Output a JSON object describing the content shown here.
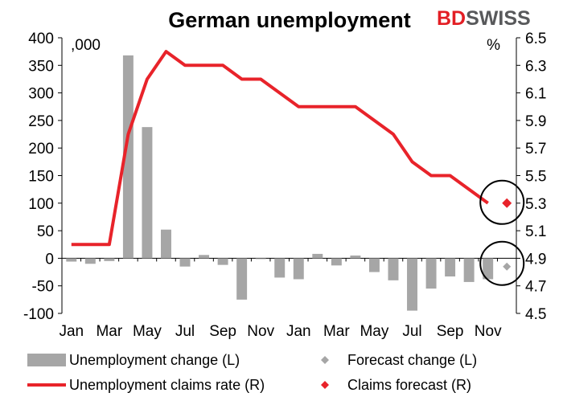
{
  "brand": {
    "part1": "BD",
    "part2": "SWISS",
    "accent_color": "#e31e24",
    "gray_color": "#58595b"
  },
  "chart_data": {
    "type": "bar",
    "title": "German unemployment",
    "left_unit": ",000",
    "right_unit": "%",
    "x_tick_labels": [
      "Jan",
      "Mar",
      "May",
      "Jul",
      "Sep",
      "Nov",
      "Jan",
      "Mar",
      "May",
      "Jul",
      "Sep",
      "Nov"
    ],
    "months": [
      "Jan",
      "Feb",
      "Mar",
      "Apr",
      "May",
      "Jun",
      "Jul",
      "Aug",
      "Sep",
      "Oct",
      "Nov",
      "Dec",
      "Jan",
      "Feb",
      "Mar",
      "Apr",
      "May",
      "Jun",
      "Jul",
      "Aug",
      "Sep",
      "Oct",
      "Nov",
      "Dec"
    ],
    "left_axis": {
      "min": -100,
      "max": 400,
      "step": 50,
      "tick_labels": [
        "400",
        "350",
        "300",
        "250",
        "200",
        "150",
        "100",
        "50",
        "0",
        "-50",
        "-100"
      ]
    },
    "right_axis": {
      "min": 4.5,
      "max": 6.5,
      "ticks": [
        6.5,
        6.3,
        6.1,
        5.9,
        5.7,
        5.5,
        5.3,
        5.1,
        4.9,
        4.7,
        4.5
      ],
      "tick_labels": [
        "6.5",
        "6.3",
        "6.1",
        "5.9",
        "5.7",
        "5.5",
        "5.3",
        "5.1",
        "4.9",
        "4.7",
        "4.5"
      ]
    },
    "series": [
      {
        "name": "Unemployment change (L)",
        "axis": "left",
        "type": "bar",
        "color": "#a6a6a6",
        "values": [
          -6,
          -10,
          -5,
          368,
          238,
          52,
          -15,
          6,
          -12,
          -75,
          0,
          -35,
          -38,
          8,
          -13,
          5,
          -25,
          -40,
          -95,
          -55,
          -33,
          -43,
          -38,
          null
        ]
      },
      {
        "name": "Unemployment claims rate (R)",
        "axis": "right",
        "type": "line",
        "color": "#e8232a",
        "values": [
          5.0,
          5.0,
          5.0,
          5.8,
          6.2,
          6.4,
          6.3,
          6.3,
          6.3,
          6.2,
          6.2,
          6.1,
          6.0,
          6.0,
          6.0,
          6.0,
          5.9,
          5.8,
          5.6,
          5.5,
          5.5,
          5.4,
          5.3,
          null
        ]
      },
      {
        "name": "Forecast change (L)",
        "axis": "left",
        "type": "marker",
        "color": "#a6a6a6",
        "index": 23,
        "value": -15
      },
      {
        "name": "Claims forecast (R)",
        "axis": "right",
        "type": "marker",
        "color": "#e8232a",
        "index": 23,
        "value": 5.3
      }
    ],
    "annotations": [
      "circle around forecast rate",
      "circle around forecast change"
    ],
    "legend": [
      {
        "label": "Unemployment change (L)",
        "symbol": "bar",
        "color": "#a6a6a6"
      },
      {
        "label": "Forecast change (L)",
        "symbol": "diamond",
        "color": "#a6a6a6"
      },
      {
        "label": "Unemployment claims rate (R)",
        "symbol": "line",
        "color": "#e8232a"
      },
      {
        "label": "Claims forecast (R)",
        "symbol": "diamond",
        "color": "#e8232a"
      }
    ],
    "legend_position": "bottom"
  }
}
